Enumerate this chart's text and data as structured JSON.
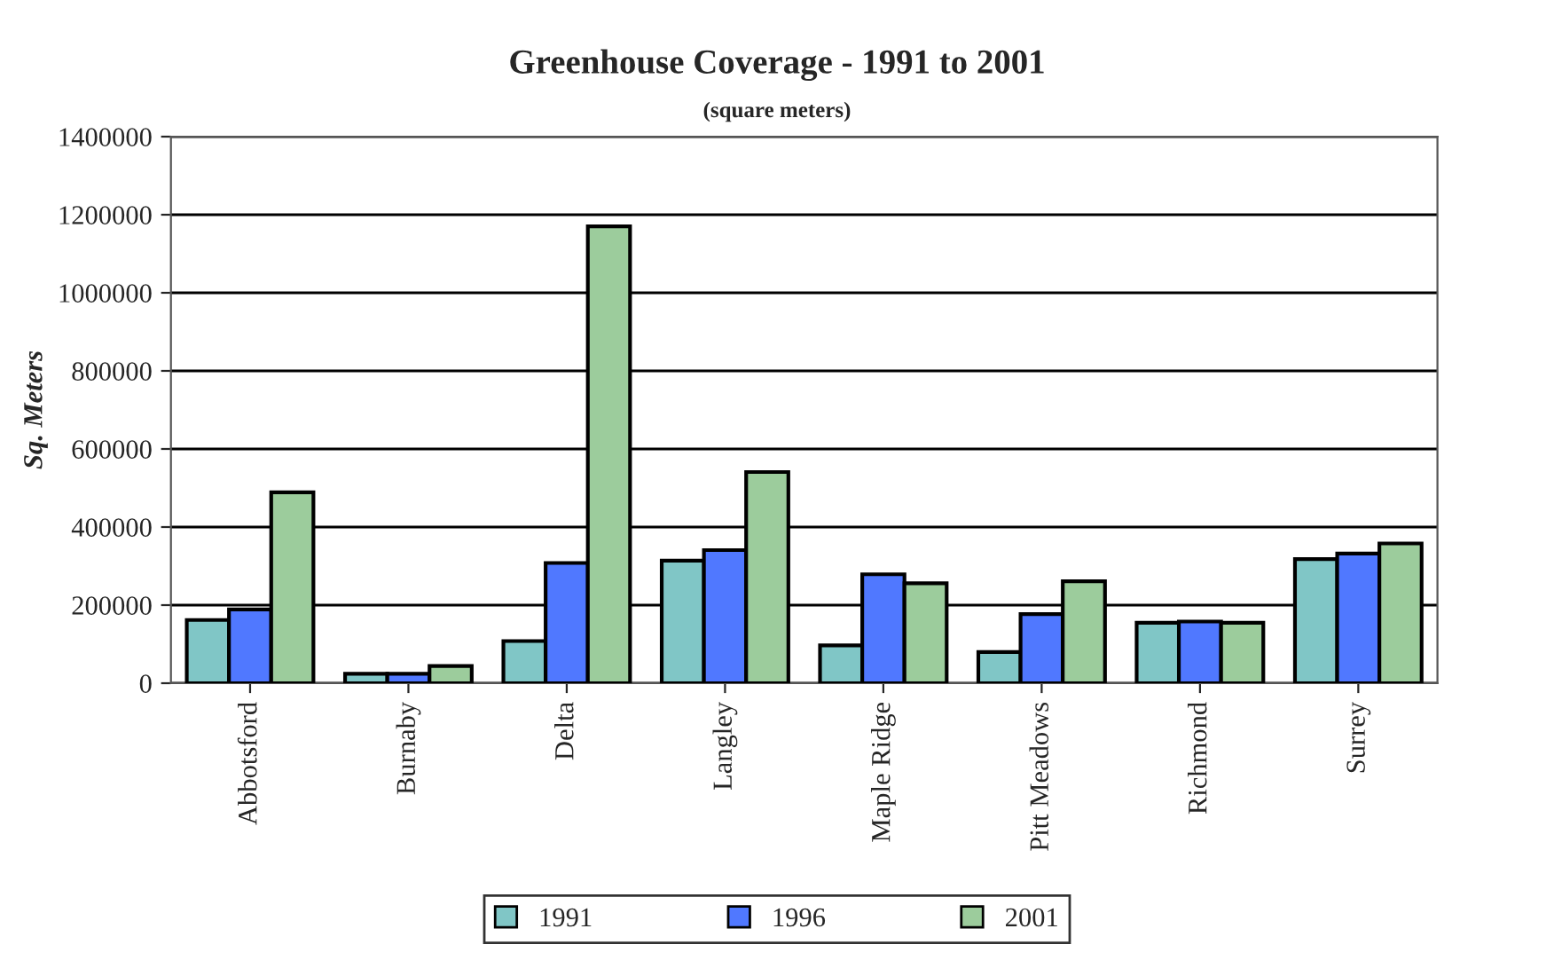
{
  "chart_data": {
    "type": "bar",
    "title": "Greenhouse Coverage - 1991 to 2001",
    "subtitle": "(square meters)",
    "ylabel": "Sq. Meters",
    "categories": [
      "Abbotsford",
      "Burnaby",
      "Delta",
      "Langley",
      "Maple Ridge",
      "Pitt Meadows",
      "Richmond",
      "Surrey"
    ],
    "series": [
      {
        "name": "1991",
        "color": "#80c6c6",
        "values": [
          162000,
          24000,
          108000,
          314000,
          97000,
          80000,
          155000,
          318000
        ]
      },
      {
        "name": "1996",
        "color": "#5078ff",
        "values": [
          189000,
          24000,
          308000,
          341000,
          279000,
          177000,
          158000,
          332000
        ]
      },
      {
        "name": "2001",
        "color": "#9ccc9c",
        "values": [
          489000,
          44000,
          1170000,
          541000,
          256000,
          261000,
          155000,
          358000
        ]
      }
    ],
    "ylim": [
      0,
      1400000
    ],
    "yticks": [
      0,
      200000,
      400000,
      600000,
      800000,
      1000000,
      1200000,
      1400000
    ],
    "grid": "y",
    "legend": "bottom"
  }
}
